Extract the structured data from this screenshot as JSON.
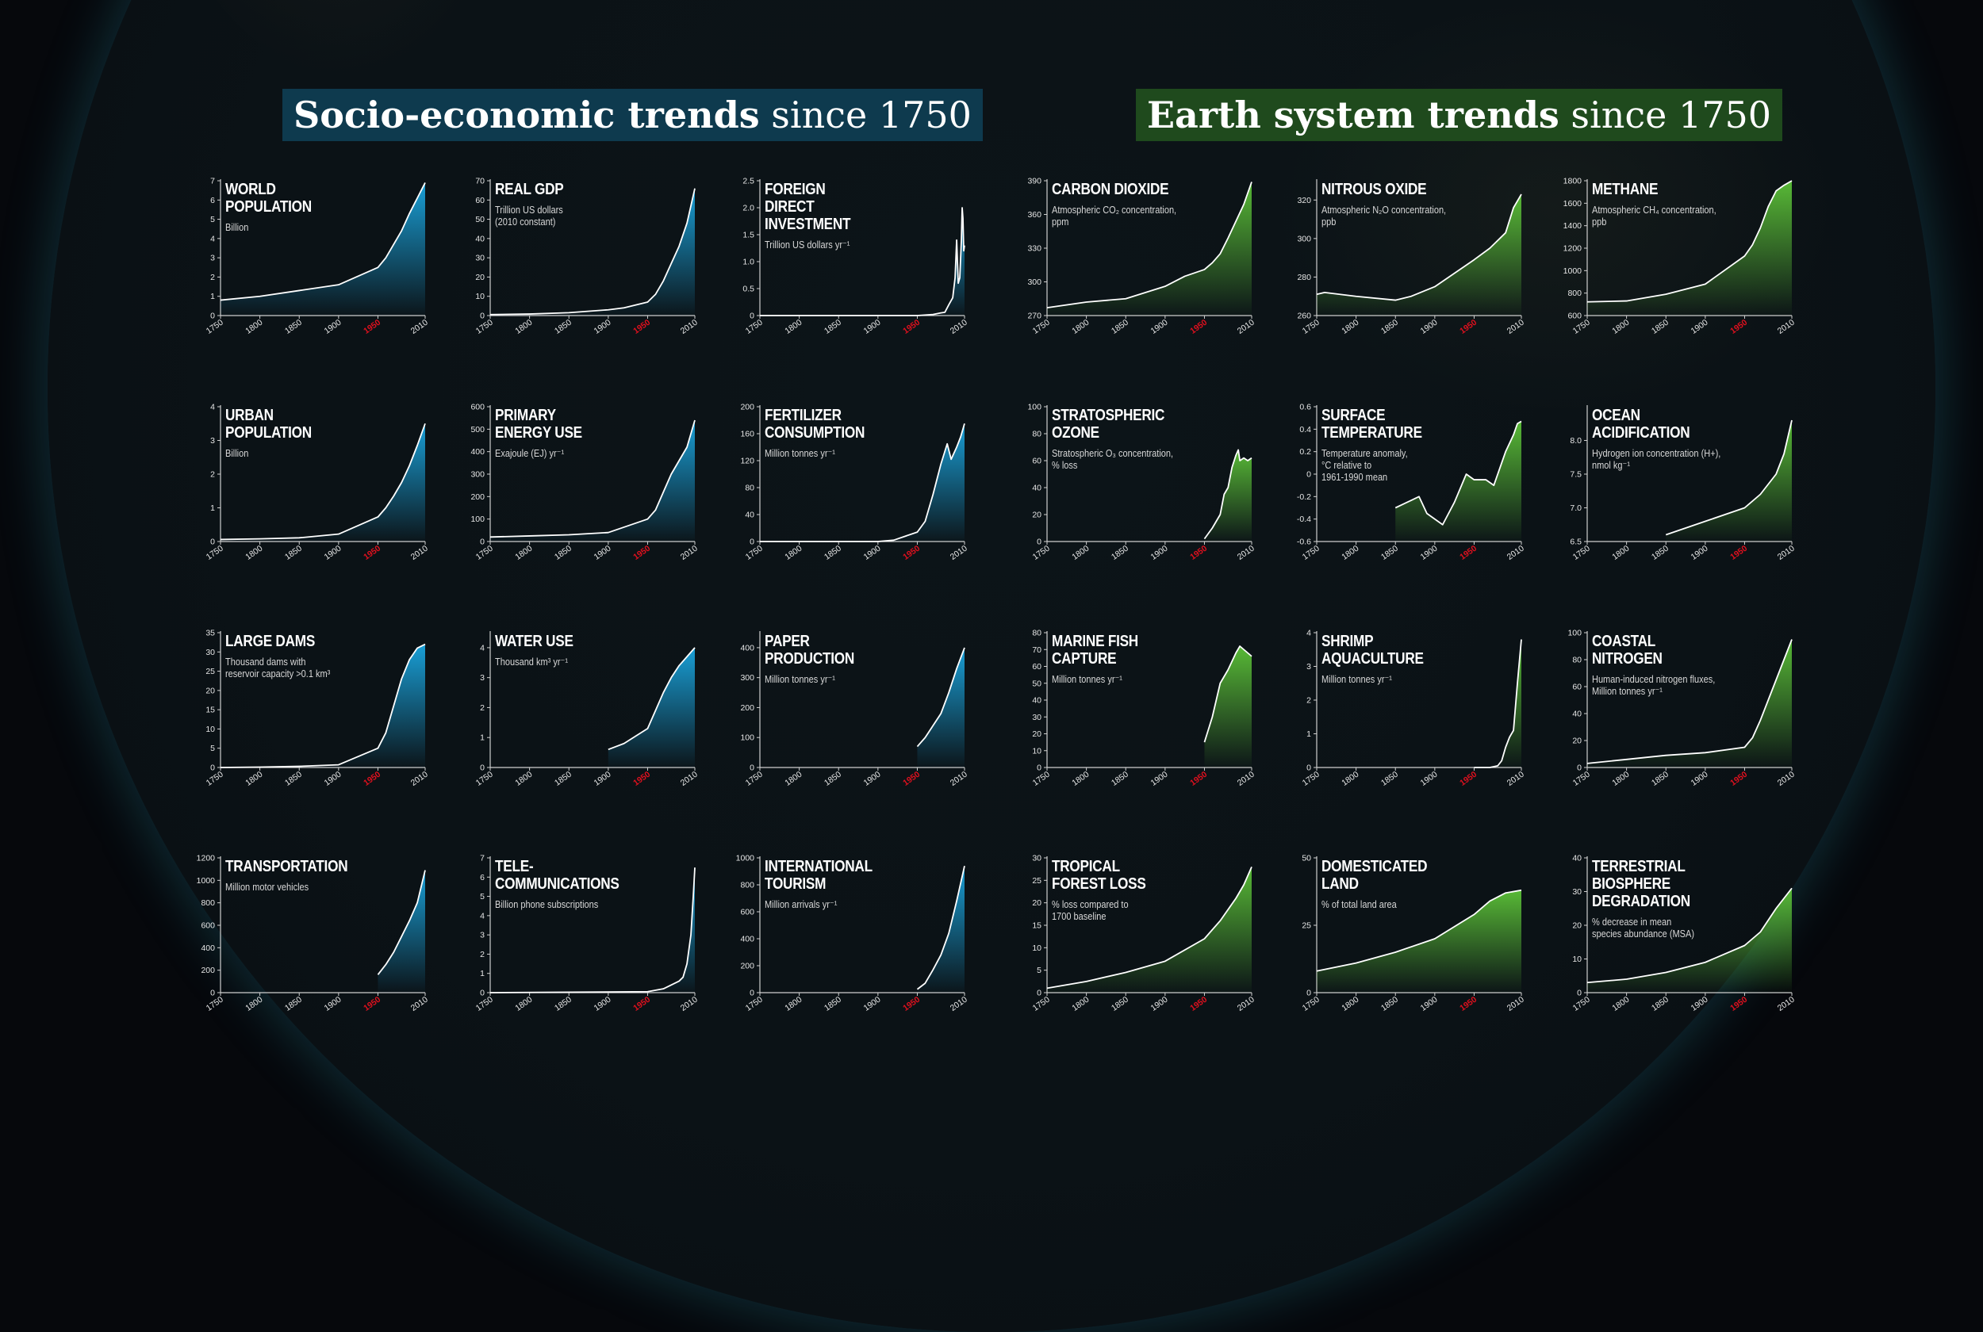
{
  "headings": {
    "left": {
      "bold": "Socio-economic trends",
      "rest": "since 1750"
    },
    "right": {
      "bold": "Earth system trends",
      "rest": "since 1750"
    }
  },
  "colors": {
    "socio_fill": "#1aa6e0",
    "earth_fill": "#5cc238",
    "highlight_year": "#e0101e",
    "line": "#ffffff"
  },
  "x_ticks": [
    "1750",
    "1800",
    "1850",
    "1900",
    "1950",
    "2010"
  ],
  "highlight_tick": "1950",
  "chart_data": [
    {
      "type": "area",
      "group": "socio",
      "title": "WORLD\nPOPULATION",
      "unit": "Billion",
      "ylim": [
        0,
        7
      ],
      "yticks": [
        "0",
        "1",
        "2",
        "3",
        "4",
        "5",
        "6",
        "7"
      ],
      "x": [
        1750,
        1800,
        1850,
        1900,
        1950,
        1960,
        1970,
        1980,
        1990,
        2000,
        2010
      ],
      "y": [
        0.8,
        1.0,
        1.3,
        1.6,
        2.5,
        3.0,
        3.7,
        4.4,
        5.3,
        6.1,
        6.9
      ]
    },
    {
      "type": "area",
      "group": "socio",
      "title": "REAL GDP",
      "unit": "Trillion US dollars\n(2010 constant)",
      "ylim": [
        0,
        70
      ],
      "yticks": [
        "0",
        "10",
        "20",
        "30",
        "40",
        "50",
        "60",
        "70"
      ],
      "x": [
        1750,
        1800,
        1850,
        1900,
        1920,
        1950,
        1960,
        1970,
        1980,
        1990,
        2000,
        2010
      ],
      "y": [
        0.5,
        0.8,
        1.5,
        3,
        4,
        7,
        11,
        18,
        27,
        36,
        48,
        66
      ]
    },
    {
      "type": "area",
      "group": "socio",
      "title": "FOREIGN\nDIRECT\nINVESTMENT",
      "unit": "Trillion US dollars yr⁻¹",
      "ylim": [
        0,
        2.5
      ],
      "yticks": [
        "0",
        "0.5",
        "1.0",
        "1.5",
        "2.0",
        "2.5"
      ],
      "x": [
        1750,
        1950,
        1970,
        1980,
        1985,
        1990,
        1995,
        1998,
        2000,
        2002,
        2004,
        2006,
        2007,
        2008,
        2009,
        2010
      ],
      "y": [
        0,
        0,
        0.02,
        0.05,
        0.06,
        0.2,
        0.33,
        0.7,
        1.4,
        0.6,
        0.7,
        1.4,
        2.0,
        1.8,
        1.2,
        1.3
      ]
    },
    {
      "type": "area",
      "group": "earth",
      "title": "CARBON DIOXIDE",
      "unit": "Atmospheric CO₂ concentration,\nppm",
      "ylim": [
        270,
        390
      ],
      "yticks": [
        "270",
        "300",
        "330",
        "360",
        "390"
      ],
      "x": [
        1750,
        1800,
        1850,
        1900,
        1925,
        1950,
        1960,
        1970,
        1980,
        1990,
        2000,
        2010
      ],
      "y": [
        277,
        282,
        285,
        296,
        305,
        311,
        317,
        325,
        339,
        354,
        369,
        389
      ]
    },
    {
      "type": "area",
      "group": "earth",
      "title": "NITROUS OXIDE",
      "unit": "Atmospheric N₂O concentration,\nppb",
      "ylim": [
        260,
        330
      ],
      "yticks": [
        "260",
        "280",
        "300",
        "320"
      ],
      "x": [
        1750,
        1760,
        1800,
        1850,
        1870,
        1900,
        1950,
        1970,
        1990,
        2000,
        2010
      ],
      "y": [
        271,
        272,
        270,
        268,
        270,
        275,
        289,
        295,
        303,
        316,
        323
      ]
    },
    {
      "type": "area",
      "group": "earth",
      "title": "METHANE",
      "unit": "Atmospheric CH₄ concentration,\nppb",
      "ylim": [
        600,
        1800
      ],
      "yticks": [
        "600",
        "800",
        "1000",
        "1200",
        "1400",
        "1600",
        "1800"
      ],
      "x": [
        1750,
        1800,
        1850,
        1900,
        1950,
        1960,
        1970,
        1980,
        1990,
        2000,
        2010
      ],
      "y": [
        722,
        730,
        790,
        880,
        1130,
        1230,
        1380,
        1570,
        1710,
        1760,
        1800
      ]
    },
    {
      "type": "area",
      "group": "socio",
      "title": "URBAN\nPOPULATION",
      "unit": "Billion",
      "ylim": [
        0,
        4
      ],
      "yticks": [
        "0",
        "1",
        "2",
        "3",
        "4"
      ],
      "x": [
        1750,
        1800,
        1850,
        1900,
        1950,
        1960,
        1970,
        1980,
        1990,
        2000,
        2010
      ],
      "y": [
        0.06,
        0.08,
        0.11,
        0.22,
        0.73,
        1.0,
        1.35,
        1.75,
        2.25,
        2.85,
        3.5
      ]
    },
    {
      "type": "area",
      "group": "socio",
      "title": "PRIMARY\nENERGY USE",
      "unit": "Exajoule (EJ) yr⁻¹",
      "ylim": [
        0,
        600
      ],
      "yticks": [
        "0",
        "100",
        "200",
        "300",
        "400",
        "500",
        "600"
      ],
      "x": [
        1750,
        1800,
        1850,
        1900,
        1950,
        1960,
        1970,
        1980,
        1990,
        2000,
        2010
      ],
      "y": [
        20,
        25,
        30,
        40,
        100,
        140,
        220,
        300,
        360,
        420,
        540
      ]
    },
    {
      "type": "area",
      "group": "socio",
      "title": "FERTILIZER\nCONSUMPTION",
      "unit": "Million tonnes yr⁻¹",
      "ylim": [
        0,
        200
      ],
      "yticks": [
        "0",
        "40",
        "80",
        "120",
        "160",
        "200"
      ],
      "x": [
        1750,
        1900,
        1920,
        1950,
        1960,
        1970,
        1980,
        1988,
        1993,
        2000,
        2005,
        2010
      ],
      "y": [
        0,
        0,
        2,
        14,
        30,
        70,
        115,
        145,
        122,
        140,
        155,
        175
      ]
    },
    {
      "type": "area",
      "group": "earth",
      "title": "STRATOSPHERIC\nOZONE",
      "unit": "Stratospheric O₃ concentration,\n% loss",
      "ylim": [
        0,
        100
      ],
      "yticks": [
        "0",
        "20",
        "40",
        "60",
        "80",
        "100"
      ],
      "x": [
        1950,
        1960,
        1970,
        1975,
        1980,
        1985,
        1990,
        1993,
        1995,
        2000,
        2005,
        2010
      ],
      "y": [
        2,
        10,
        20,
        35,
        40,
        55,
        64,
        68,
        60,
        62,
        60,
        62
      ]
    },
    {
      "type": "area",
      "group": "earth",
      "title": "SURFACE\nTEMPERATURE",
      "unit": "Temperature anomaly,\n°C relative to\n1961-1990 mean",
      "ylim": [
        -0.6,
        0.6
      ],
      "yticks": [
        "-0.6",
        "-0.4",
        "-0.2",
        "0",
        "0.2",
        "0.4",
        "0.6"
      ],
      "x": [
        1850,
        1880,
        1890,
        1910,
        1925,
        1940,
        1950,
        1965,
        1975,
        1985,
        1990,
        2000,
        2005,
        2010
      ],
      "y": [
        -0.3,
        -0.2,
        -0.35,
        -0.45,
        -0.25,
        0.0,
        -0.05,
        -0.05,
        -0.1,
        0.1,
        0.2,
        0.35,
        0.45,
        0.47
      ]
    },
    {
      "type": "area",
      "group": "earth",
      "title": "OCEAN\nACIDIFICATION",
      "unit": "Hydrogen ion concentration (H+),\nnmol kg⁻¹",
      "ylim": [
        6.5,
        8.5
      ],
      "yticks": [
        "6.5",
        "7.0",
        "7.5",
        "8.0"
      ],
      "x": [
        1850,
        1900,
        1950,
        1970,
        1990,
        2000,
        2010
      ],
      "y": [
        6.6,
        6.8,
        7.0,
        7.2,
        7.5,
        7.8,
        8.3
      ]
    },
    {
      "type": "area",
      "group": "socio",
      "title": "LARGE DAMS",
      "unit": "Thousand dams with\nreservoir capacity >0.1 km³",
      "ylim": [
        0,
        35
      ],
      "yticks": [
        "0",
        "5",
        "10",
        "15",
        "20",
        "25",
        "30",
        "35"
      ],
      "x": [
        1750,
        1800,
        1850,
        1900,
        1950,
        1960,
        1970,
        1980,
        1990,
        2000,
        2010
      ],
      "y": [
        0,
        0.1,
        0.3,
        0.7,
        5,
        9,
        16,
        23,
        28,
        31,
        32
      ]
    },
    {
      "type": "area",
      "group": "socio",
      "title": "WATER USE",
      "unit": "Thousand km³ yr⁻¹",
      "ylim": [
        0,
        4.5
      ],
      "yticks": [
        "0",
        "1",
        "2",
        "3",
        "4"
      ],
      "x": [
        1900,
        1920,
        1950,
        1960,
        1970,
        1980,
        1990,
        2000,
        2010
      ],
      "y": [
        0.6,
        0.8,
        1.3,
        1.9,
        2.5,
        3.0,
        3.4,
        3.7,
        4.0
      ]
    },
    {
      "type": "area",
      "group": "socio",
      "title": "PAPER\nPRODUCTION",
      "unit": "Million tonnes yr⁻¹",
      "ylim": [
        0,
        450
      ],
      "yticks": [
        "0",
        "100",
        "200",
        "300",
        "400"
      ],
      "x": [
        1950,
        1960,
        1970,
        1980,
        1990,
        2000,
        2010
      ],
      "y": [
        70,
        100,
        140,
        180,
        250,
        330,
        400
      ]
    },
    {
      "type": "area",
      "group": "earth",
      "title": "MARINE FISH\nCAPTURE",
      "unit": "Million tonnes yr⁻¹",
      "ylim": [
        0,
        80
      ],
      "yticks": [
        "0",
        "10",
        "20",
        "30",
        "40",
        "50",
        "60",
        "70",
        "80"
      ],
      "x": [
        1950,
        1960,
        1970,
        1980,
        1990,
        1995,
        2000,
        2010
      ],
      "y": [
        15,
        30,
        50,
        58,
        68,
        72,
        70,
        66
      ]
    },
    {
      "type": "area",
      "group": "earth",
      "title": "SHRIMP\nAQUACULTURE",
      "unit": "Million tonnes yr⁻¹",
      "ylim": [
        0,
        4
      ],
      "yticks": [
        "0",
        "1",
        "2",
        "3",
        "4"
      ],
      "x": [
        1950,
        1970,
        1980,
        1985,
        1990,
        1995,
        2000,
        2005,
        2010
      ],
      "y": [
        0,
        0,
        0.05,
        0.2,
        0.6,
        0.9,
        1.1,
        2.5,
        3.8
      ]
    },
    {
      "type": "area",
      "group": "earth",
      "title": "COASTAL\nNITROGEN",
      "unit": "Human-induced nitrogen fluxes,\nMillion tonnes yr⁻¹",
      "ylim": [
        0,
        100
      ],
      "yticks": [
        "0",
        "20",
        "40",
        "60",
        "80",
        "100"
      ],
      "x": [
        1750,
        1800,
        1850,
        1900,
        1950,
        1960,
        1970,
        1980,
        1990,
        2000,
        2010
      ],
      "y": [
        3,
        6,
        9,
        11,
        15,
        22,
        35,
        50,
        65,
        80,
        95
      ]
    },
    {
      "type": "area",
      "group": "socio",
      "title": "TRANSPORTATION",
      "unit": "Million motor vehicles",
      "ylim": [
        0,
        1200
      ],
      "yticks": [
        "0",
        "200",
        "400",
        "600",
        "800",
        "1000",
        "1200"
      ],
      "x": [
        1950,
        1960,
        1970,
        1980,
        1990,
        2000,
        2010
      ],
      "y": [
        160,
        250,
        360,
        500,
        640,
        800,
        1090
      ]
    },
    {
      "type": "area",
      "group": "socio",
      "title": "TELE-\nCOMMUNICATIONS",
      "unit": "Billion phone subscriptions",
      "ylim": [
        0,
        7
      ],
      "yticks": [
        "0",
        "1",
        "2",
        "3",
        "4",
        "5",
        "6",
        "7"
      ],
      "x": [
        1750,
        1950,
        1970,
        1980,
        1990,
        1995,
        2000,
        2005,
        2008,
        2010
      ],
      "y": [
        0,
        0.05,
        0.2,
        0.4,
        0.6,
        0.8,
        1.5,
        3.0,
        5.0,
        6.5
      ]
    },
    {
      "type": "area",
      "group": "socio",
      "title": "INTERNATIONAL\nTOURISM",
      "unit": "Million arrivals yr⁻¹",
      "ylim": [
        0,
        1000
      ],
      "yticks": [
        "0",
        "200",
        "400",
        "600",
        "800",
        "1000"
      ],
      "x": [
        1950,
        1960,
        1970,
        1980,
        1990,
        2000,
        2010
      ],
      "y": [
        25,
        70,
        170,
        280,
        440,
        680,
        940
      ]
    },
    {
      "type": "area",
      "group": "earth",
      "title": "TROPICAL\nFOREST LOSS",
      "unit": "% loss compared to\n1700 baseline",
      "ylim": [
        0,
        30
      ],
      "yticks": [
        "0",
        "5",
        "10",
        "15",
        "20",
        "25",
        "30"
      ],
      "x": [
        1750,
        1800,
        1850,
        1900,
        1950,
        1970,
        1990,
        2000,
        2010
      ],
      "y": [
        1,
        2.5,
        4.5,
        7,
        12,
        16,
        21,
        24,
        28
      ]
    },
    {
      "type": "area",
      "group": "earth",
      "title": "DOMESTICATED\nLAND",
      "unit": "% of total land area",
      "ylim": [
        0,
        50
      ],
      "yticks": [
        "0",
        "25",
        "50"
      ],
      "x": [
        1750,
        1800,
        1850,
        1900,
        1950,
        1970,
        1990,
        2010
      ],
      "y": [
        8,
        11,
        15,
        20,
        29,
        34,
        37,
        38
      ]
    },
    {
      "type": "area",
      "group": "earth",
      "title": "TERRESTRIAL\nBIOSPHERE\nDEGRADATION",
      "unit": "% decrease in mean\nspecies abundance (MSA)",
      "ylim": [
        0,
        40
      ],
      "yticks": [
        "0",
        "10",
        "20",
        "30",
        "40"
      ],
      "x": [
        1750,
        1800,
        1850,
        1900,
        1950,
        1970,
        1990,
        2010
      ],
      "y": [
        3,
        4,
        6,
        9,
        14,
        18,
        25,
        31
      ]
    }
  ]
}
